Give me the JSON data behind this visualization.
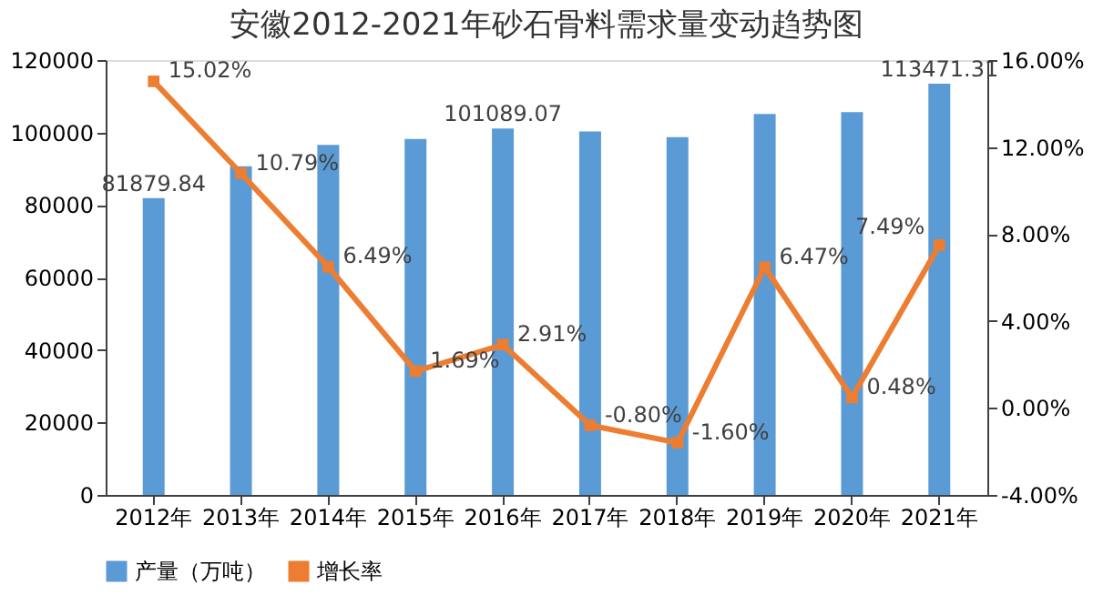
{
  "chart_data": {
    "type": "bar",
    "title": "安徽2012-2021年砂石骨料需求量变动趋势图",
    "categories": [
      "2012年",
      "2013年",
      "2014年",
      "2015年",
      "2016年",
      "2017年",
      "2018年",
      "2019年",
      "2020年",
      "2021年"
    ],
    "series": [
      {
        "name": "产量（万吨）",
        "color": "#5b9bd5",
        "values": [
          81879.84,
          90700,
          96600,
          98200,
          101089.07,
          100300,
          98700,
          105100,
          105600,
          113471.31
        ],
        "value_labels": [
          "81879.84",
          null,
          null,
          null,
          "101089.07",
          null,
          null,
          null,
          null,
          "113471.31"
        ]
      },
      {
        "name": "增长率",
        "type": "line",
        "axis": "y2",
        "color": "#ed7d31",
        "marker": "square",
        "values": [
          15.02,
          10.79,
          6.49,
          1.69,
          2.91,
          -0.8,
          -1.6,
          6.47,
          0.48,
          7.49
        ],
        "value_labels": [
          "15.02%",
          "10.79%",
          "6.49%",
          "1.69%",
          "2.91%",
          "-0.80%",
          "-1.60%",
          "6.47%",
          "0.48%",
          "7.49%"
        ]
      }
    ],
    "ylim": [
      0,
      120000
    ],
    "yticks": [
      0,
      20000,
      40000,
      60000,
      80000,
      100000,
      120000
    ],
    "y2lim": [
      -4,
      16
    ],
    "y2ticks": [
      {
        "value": -4,
        "label": "-4.00%"
      },
      {
        "value": 0,
        "label": "0.00%"
      },
      {
        "value": 4,
        "label": "4.00%"
      },
      {
        "value": 8,
        "label": "8.00%"
      },
      {
        "value": 12,
        "label": "12.00%"
      },
      {
        "value": 16,
        "label": "16.00%"
      }
    ],
    "grid": false,
    "legend": "bottom"
  }
}
